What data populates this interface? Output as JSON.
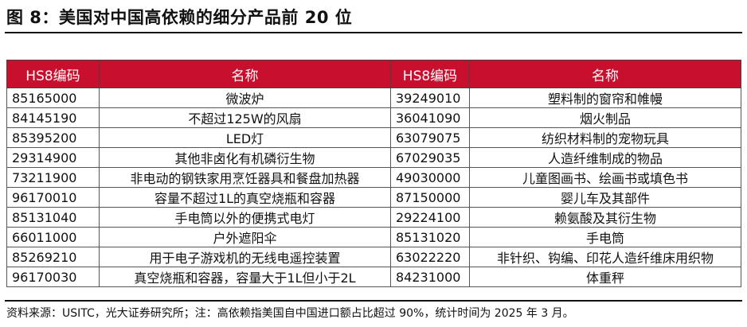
{
  "title": "图 8：美国对中国高依赖的细分产品前 20 位",
  "headers": [
    "HS8编码",
    "名称",
    "HS8编码",
    "名称"
  ],
  "rows": [
    {
      "code1": "85165000",
      "name1": "微波炉",
      "code2": "39249010",
      "name2": "塑料制的窗帘和帷幔"
    },
    {
      "code1": "84145190",
      "name1": "不超过125W的风扇",
      "code2": "36041090",
      "name2": "烟火制品"
    },
    {
      "code1": "85395200",
      "name1": "LED灯",
      "code2": "63079075",
      "name2": "纺织材料制的宠物玩具"
    },
    {
      "code1": "29314900",
      "name1": "其他非卤化有机磷衍生物",
      "code2": "67029035",
      "name2": "人造纤维制成的物品"
    },
    {
      "code1": "73211900",
      "name1": "非电动的钢铁家用烹饪器具和餐盘加热器",
      "code2": "49030000",
      "name2": "儿童图画书、绘画书或填色书"
    },
    {
      "code1": "96170010",
      "name1": "容量不超过1L的真空烧瓶和容器",
      "code2": "87150000",
      "name2": "婴儿车及其部件"
    },
    {
      "code1": "85131040",
      "name1": "手电筒以外的便携式电灯",
      "code2": "29224100",
      "name2": "赖氨酸及其衍生物"
    },
    {
      "code1": "66011000",
      "name1": "户外遮阳伞",
      "code2": "85131020",
      "name2": "手电筒"
    },
    {
      "code1": "85269210",
      "name1": "用于电子游戏机的无线电遥控装置",
      "code2": "63022220",
      "name2": "非针织、钩编、印花人造纤维床用织物"
    },
    {
      "code1": "96170030",
      "name1": "真空烧瓶和容器，容量大于1L但小于2L",
      "code2": "84231000",
      "name2": "体重秤"
    }
  ],
  "source_note": "资料来源：USITC，光大证券研究所；注：高依赖指美国自中国进口额占比超过 90%，统计时间为 2025 年 3 月。",
  "colors": {
    "header_bg": "#c8102e",
    "header_text": "#ffffff"
  }
}
